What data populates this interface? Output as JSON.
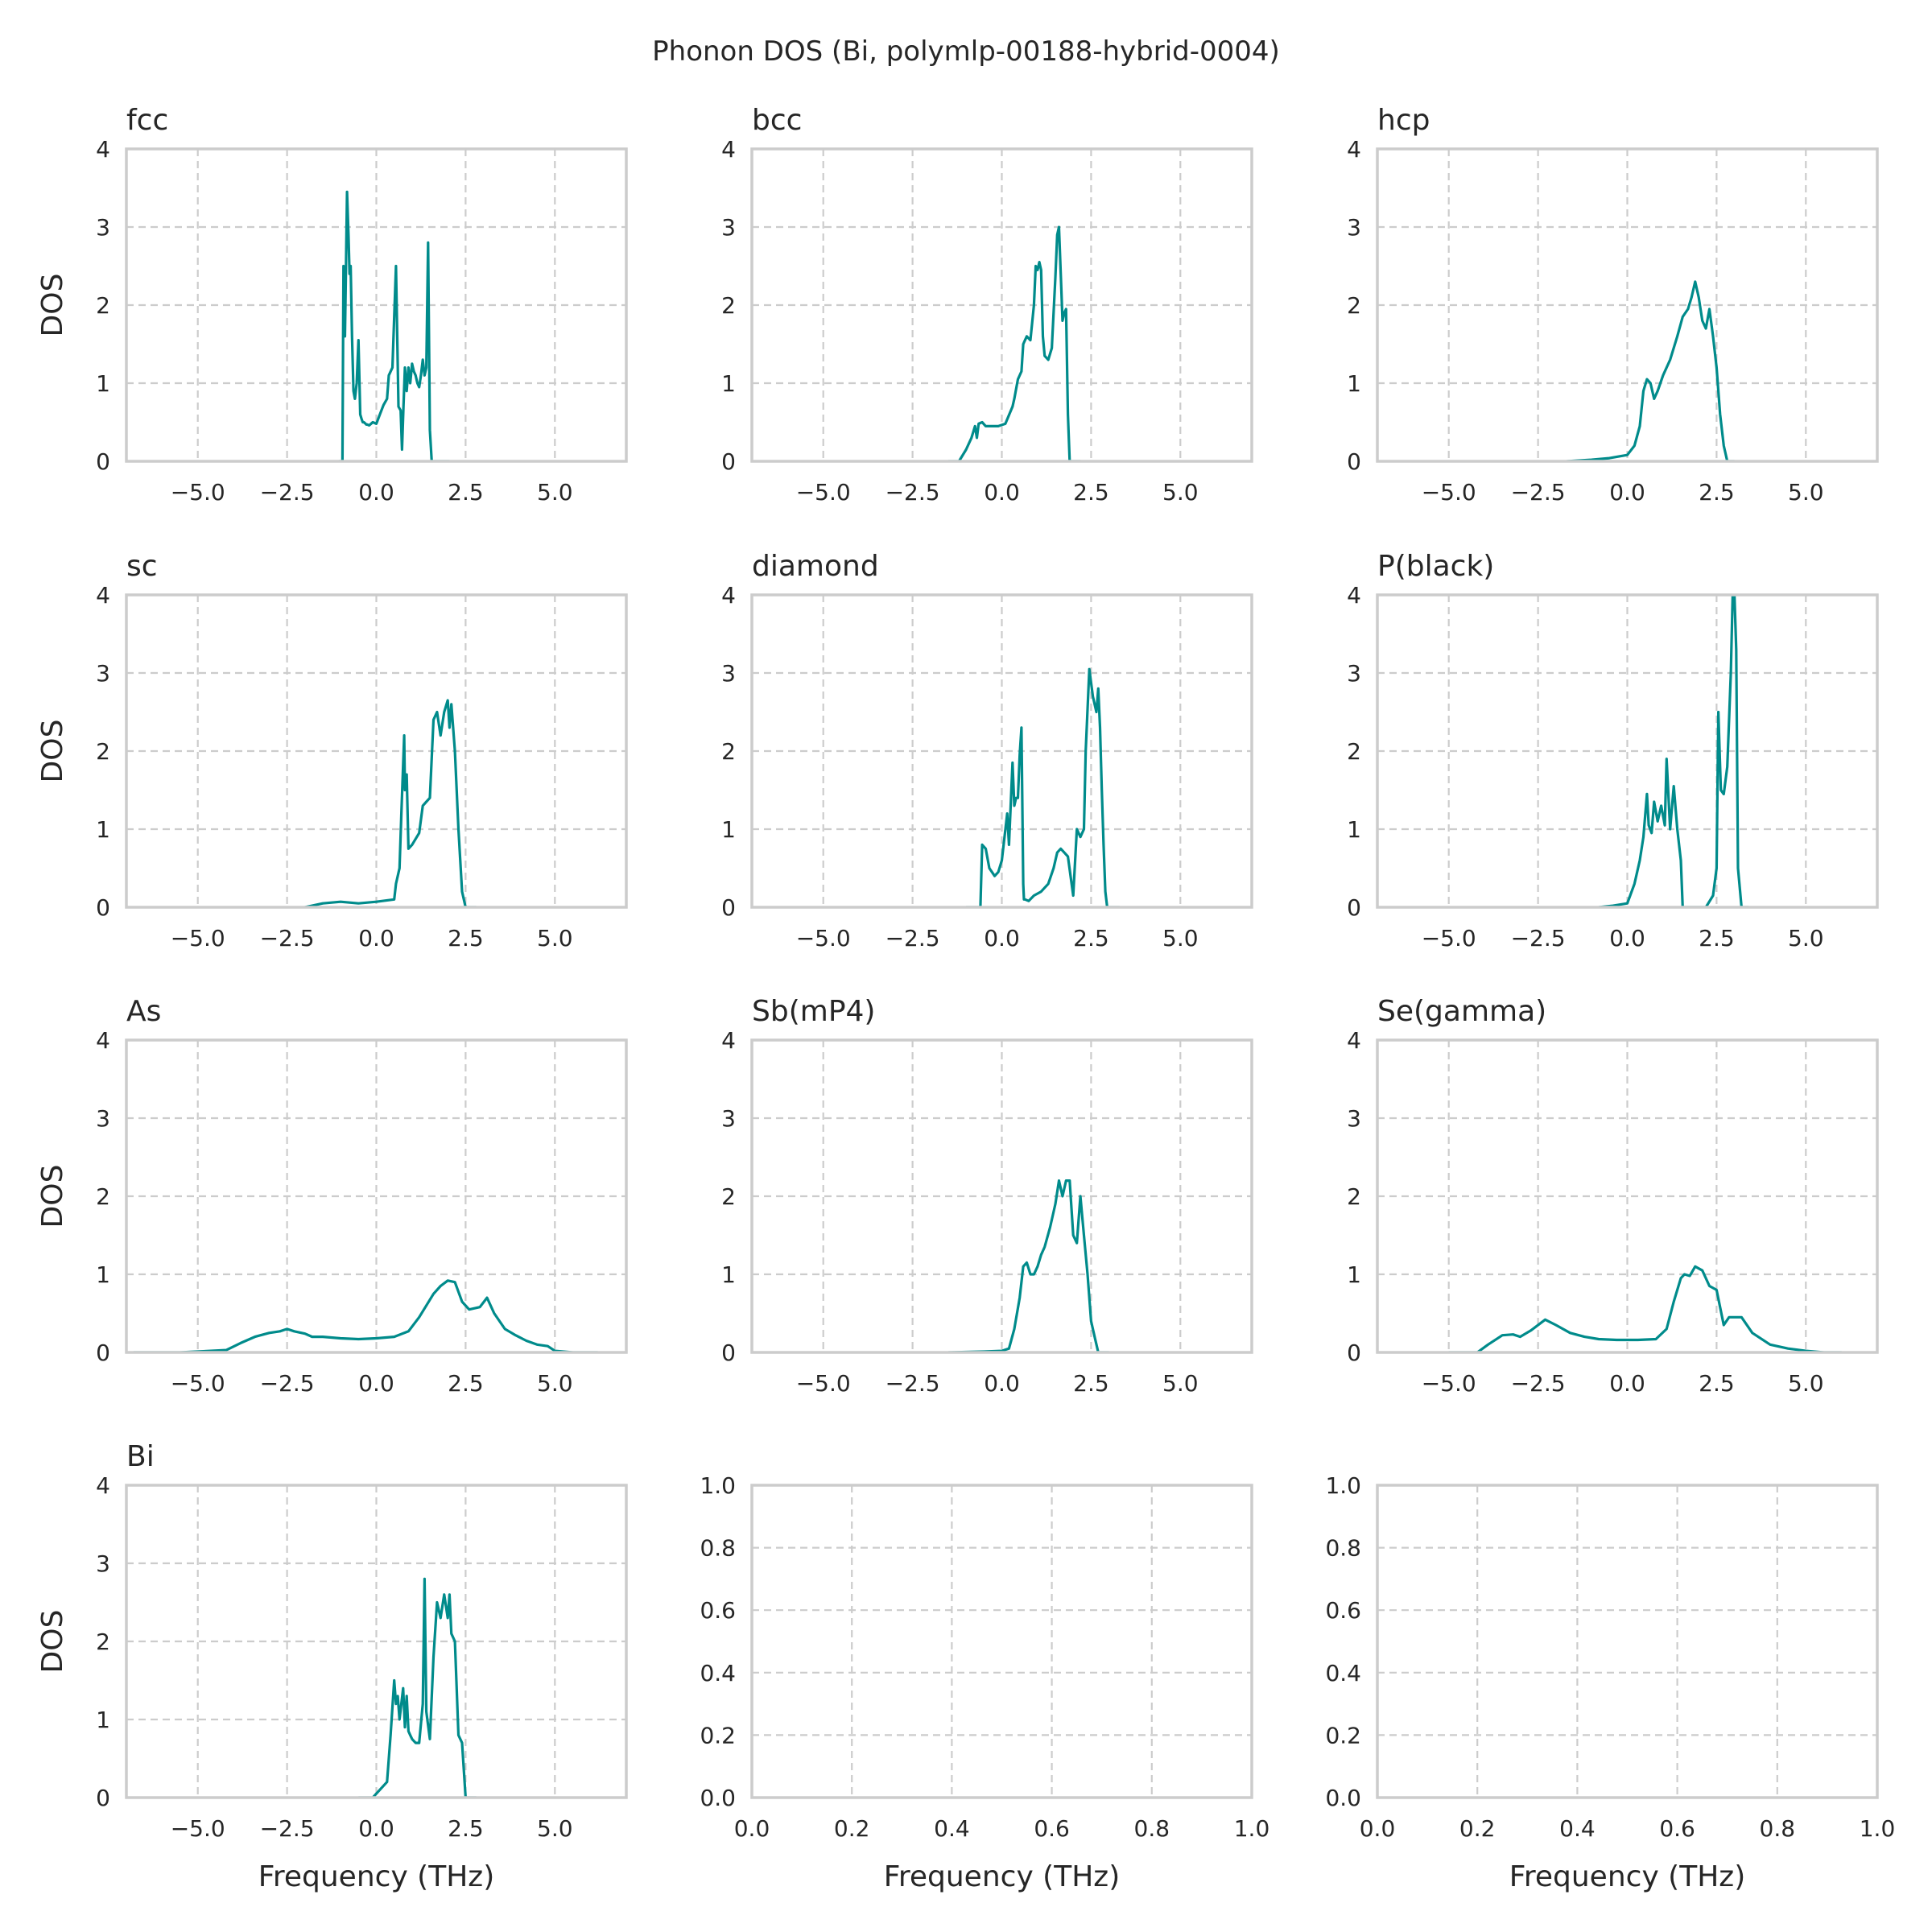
{
  "figure": {
    "title": "Phonon DOS (Bi, polymlp-00188-hybrid-0004)",
    "line_color": "#008b8b"
  },
  "chart_data": [
    {
      "type": "line",
      "title": "fcc",
      "xlabel": "",
      "ylabel": "DOS",
      "xlim": [
        -7,
        7
      ],
      "ylim": [
        0,
        4
      ],
      "xticks": [
        -5.0,
        -2.5,
        0.0,
        2.5,
        5.0
      ],
      "xtick_labels": [
        "−5.0",
        "−2.5",
        "0.0",
        "2.5",
        "5.0"
      ],
      "yticks": [
        0,
        1,
        2,
        3,
        4
      ],
      "ytick_labels": [
        "0",
        "1",
        "2",
        "3",
        "4"
      ],
      "grid": true,
      "x": [
        -1.05,
        -0.95,
        -0.92,
        -0.88,
        -0.85,
        -0.82,
        -0.78,
        -0.75,
        -0.72,
        -0.68,
        -0.64,
        -0.6,
        -0.55,
        -0.5,
        -0.45,
        -0.42,
        -0.38,
        -0.35,
        -0.3,
        -0.28,
        -0.25,
        -0.2,
        -0.1,
        0.0,
        0.1,
        0.2,
        0.3,
        0.35,
        0.45,
        0.55,
        0.62,
        0.68,
        0.72,
        0.76,
        0.8,
        0.85,
        0.9,
        0.95,
        1.0,
        1.05,
        1.1,
        1.15,
        1.2,
        1.25,
        1.3,
        1.35,
        1.4,
        1.45,
        1.5,
        1.55,
        1.6,
        1.65,
        1.7,
        1.75,
        1.8,
        1.85,
        1.95,
        2.05
      ],
      "y": [
        0,
        0,
        2.5,
        1.6,
        2.5,
        3.45,
        2.9,
        2.4,
        2.5,
        1.6,
        0.9,
        0.8,
        1.0,
        1.55,
        0.6,
        0.55,
        0.5,
        0.5,
        0.48,
        0.47,
        0.47,
        0.46,
        0.5,
        0.48,
        0.6,
        0.72,
        0.8,
        1.1,
        1.2,
        2.5,
        0.7,
        0.65,
        0.15,
        0.7,
        1.2,
        0.9,
        1.2,
        1.0,
        1.25,
        1.15,
        1.1,
        1.0,
        0.95,
        1.1,
        1.3,
        1.1,
        1.2,
        2.8,
        0.4,
        0,
        0,
        0,
        0,
        0,
        0,
        0,
        0,
        0
      ]
    },
    {
      "type": "line",
      "title": "bcc",
      "xlabel": "",
      "ylabel": "",
      "xlim": [
        -7,
        7
      ],
      "ylim": [
        0,
        4
      ],
      "xticks": [
        -5.0,
        -2.5,
        0.0,
        2.5,
        5.0
      ],
      "xtick_labels": [
        "−5.0",
        "−2.5",
        "0.0",
        "2.5",
        "5.0"
      ],
      "yticks": [
        0,
        1,
        2,
        3,
        4
      ],
      "ytick_labels": [
        "0",
        "1",
        "2",
        "3",
        "4"
      ],
      "grid": true,
      "x": [
        -1.5,
        -1.2,
        -1.0,
        -0.85,
        -0.75,
        -0.7,
        -0.65,
        -0.55,
        -0.45,
        -0.3,
        -0.1,
        0.1,
        0.3,
        0.35,
        0.45,
        0.55,
        0.6,
        0.7,
        0.8,
        0.9,
        0.95,
        1.0,
        1.05,
        1.1,
        1.15,
        1.2,
        1.3,
        1.4,
        1.5,
        1.55,
        1.6,
        1.65,
        1.7,
        1.75,
        1.8,
        1.85,
        1.9,
        1.95,
        2.0,
        2.05,
        2.2
      ],
      "y": [
        0,
        0,
        0.15,
        0.3,
        0.45,
        0.3,
        0.48,
        0.5,
        0.45,
        0.45,
        0.45,
        0.48,
        0.7,
        0.8,
        1.05,
        1.15,
        1.5,
        1.6,
        1.55,
        2.0,
        2.5,
        2.45,
        2.55,
        2.45,
        1.6,
        1.35,
        1.3,
        1.45,
        2.35,
        2.9,
        3.0,
        2.4,
        1.8,
        1.9,
        1.95,
        0.6,
        0,
        0,
        0,
        0,
        0
      ]
    },
    {
      "type": "line",
      "title": "hcp",
      "xlabel": "",
      "ylabel": "",
      "xlim": [
        -7,
        7
      ],
      "ylim": [
        0,
        4
      ],
      "xticks": [
        -5.0,
        -2.5,
        0.0,
        2.5,
        5.0
      ],
      "xtick_labels": [
        "−5.0",
        "−2.5",
        "0.0",
        "2.5",
        "5.0"
      ],
      "yticks": [
        0,
        1,
        2,
        3,
        4
      ],
      "ytick_labels": [
        "0",
        "1",
        "2",
        "3",
        "4"
      ],
      "grid": true,
      "x": [
        -1.7,
        -1.0,
        -0.5,
        0.0,
        0.2,
        0.35,
        0.45,
        0.55,
        0.65,
        0.75,
        0.85,
        1.0,
        1.2,
        1.4,
        1.55,
        1.7,
        1.8,
        1.9,
        2.0,
        2.1,
        2.2,
        2.3,
        2.4,
        2.5,
        2.6,
        2.7,
        2.8,
        2.9,
        3.0
      ],
      "y": [
        0,
        0.02,
        0.04,
        0.08,
        0.2,
        0.45,
        0.9,
        1.05,
        1.0,
        0.8,
        0.9,
        1.1,
        1.3,
        1.6,
        1.85,
        1.95,
        2.1,
        2.3,
        2.1,
        1.8,
        1.7,
        1.95,
        1.6,
        1.2,
        0.6,
        0.2,
        0,
        0,
        0
      ]
    },
    {
      "type": "line",
      "title": "sc",
      "xlabel": "",
      "ylabel": "DOS",
      "xlim": [
        -7,
        7
      ],
      "ylim": [
        0,
        4
      ],
      "xticks": [
        -5.0,
        -2.5,
        0.0,
        2.5,
        5.0
      ],
      "xtick_labels": [
        "−5.0",
        "−2.5",
        "0.0",
        "2.5",
        "5.0"
      ],
      "yticks": [
        0,
        1,
        2,
        3,
        4
      ],
      "ytick_labels": [
        "0",
        "1",
        "2",
        "3",
        "4"
      ],
      "grid": true,
      "x": [
        -2.0,
        -1.5,
        -1.0,
        -0.5,
        0.0,
        0.5,
        0.55,
        0.65,
        0.7,
        0.78,
        0.8,
        0.85,
        0.9,
        1.0,
        1.2,
        1.3,
        1.4,
        1.5,
        1.6,
        1.7,
        1.8,
        1.9,
        2.0,
        2.05,
        2.1,
        2.2,
        2.3,
        2.4,
        2.5,
        2.6,
        2.8
      ],
      "y": [
        0,
        0.05,
        0.07,
        0.05,
        0.07,
        0.1,
        0.3,
        0.5,
        1.2,
        2.2,
        1.5,
        1.7,
        0.75,
        0.8,
        0.95,
        1.3,
        1.35,
        1.4,
        2.4,
        2.5,
        2.2,
        2.5,
        2.65,
        2.3,
        2.6,
        2.0,
        1.0,
        0.2,
        0,
        0,
        0
      ]
    },
    {
      "type": "line",
      "title": "diamond",
      "xlabel": "",
      "ylabel": "",
      "xlim": [
        -7,
        7
      ],
      "ylim": [
        0,
        4
      ],
      "xticks": [
        -5.0,
        -2.5,
        0.0,
        2.5,
        5.0
      ],
      "xtick_labels": [
        "−5.0",
        "−2.5",
        "0.0",
        "2.5",
        "5.0"
      ],
      "yticks": [
        0,
        1,
        2,
        3,
        4
      ],
      "ytick_labels": [
        "0",
        "1",
        "2",
        "3",
        "4"
      ],
      "grid": true,
      "x": [
        -1.0,
        -0.6,
        -0.55,
        -0.45,
        -0.35,
        -0.2,
        -0.1,
        0.0,
        0.15,
        0.2,
        0.3,
        0.35,
        0.4,
        0.45,
        0.5,
        0.55,
        0.6,
        0.62,
        0.65,
        0.75,
        0.9,
        1.1,
        1.3,
        1.45,
        1.55,
        1.65,
        1.75,
        1.85,
        2.0,
        2.1,
        2.2,
        2.3,
        2.35,
        2.45,
        2.55,
        2.65,
        2.7,
        2.75,
        2.8,
        2.85,
        2.9,
        2.95,
        3.0,
        3.1,
        3.3
      ],
      "y": [
        0,
        0,
        0.8,
        0.75,
        0.5,
        0.4,
        0.45,
        0.6,
        1.2,
        0.8,
        1.85,
        1.3,
        1.4,
        1.4,
        1.95,
        2.3,
        0.3,
        0.1,
        0.1,
        0.08,
        0.15,
        0.2,
        0.3,
        0.5,
        0.7,
        0.75,
        0.7,
        0.65,
        0.15,
        1.0,
        0.9,
        1.0,
        2.0,
        3.05,
        2.7,
        2.5,
        2.8,
        2.3,
        1.5,
        0.8,
        0.2,
        0,
        0,
        0,
        0
      ]
    },
    {
      "type": "line",
      "title": "P(black)",
      "xlabel": "",
      "ylabel": "",
      "xlim": [
        -7,
        7
      ],
      "ylim": [
        0,
        4
      ],
      "xticks": [
        -5.0,
        -2.5,
        0.0,
        2.5,
        5.0
      ],
      "xtick_labels": [
        "−5.0",
        "−2.5",
        "0.0",
        "2.5",
        "5.0"
      ],
      "yticks": [
        0,
        1,
        2,
        3,
        4
      ],
      "ytick_labels": [
        "0",
        "1",
        "2",
        "3",
        "4"
      ],
      "grid": true,
      "x": [
        -0.8,
        -0.4,
        0.0,
        0.2,
        0.35,
        0.45,
        0.55,
        0.6,
        0.68,
        0.75,
        0.85,
        0.95,
        1.05,
        1.1,
        1.2,
        1.3,
        1.4,
        1.5,
        1.55,
        1.65,
        1.72,
        1.8,
        2.0,
        2.2,
        2.4,
        2.5,
        2.55,
        2.62,
        2.7,
        2.8,
        2.9,
        2.95,
        3.0,
        3.05,
        3.1,
        3.2,
        3.4
      ],
      "y": [
        0,
        0.02,
        0.05,
        0.3,
        0.6,
        0.9,
        1.45,
        1.05,
        0.95,
        1.35,
        1.1,
        1.3,
        1.05,
        1.9,
        1.0,
        1.55,
        1.0,
        0.6,
        0.0,
        0,
        0,
        0,
        0,
        0,
        0.15,
        0.5,
        2.5,
        1.5,
        1.45,
        1.8,
        3.0,
        4.0,
        4.0,
        3.3,
        0.5,
        0,
        0
      ]
    },
    {
      "type": "line",
      "title": "As",
      "xlabel": "",
      "ylabel": "DOS",
      "xlim": [
        -7,
        7
      ],
      "ylim": [
        0,
        4
      ],
      "xticks": [
        -5.0,
        -2.5,
        0.0,
        2.5,
        5.0
      ],
      "xtick_labels": [
        "−5.0",
        "−2.5",
        "0.0",
        "2.5",
        "5.0"
      ],
      "yticks": [
        0,
        1,
        2,
        3,
        4
      ],
      "ytick_labels": [
        "0",
        "1",
        "2",
        "3",
        "4"
      ],
      "grid": true,
      "x": [
        -6.8,
        -5.5,
        -4.2,
        -3.8,
        -3.4,
        -3.0,
        -2.7,
        -2.5,
        -2.3,
        -2.0,
        -1.8,
        -1.5,
        -1.0,
        -0.5,
        0.0,
        0.5,
        0.9,
        1.2,
        1.4,
        1.6,
        1.8,
        2.0,
        2.2,
        2.4,
        2.6,
        2.9,
        3.1,
        3.3,
        3.6,
        3.9,
        4.2,
        4.5,
        4.8,
        5.0,
        5.5,
        6.2
      ],
      "y": [
        0,
        0,
        0.03,
        0.12,
        0.2,
        0.25,
        0.27,
        0.3,
        0.27,
        0.24,
        0.2,
        0.2,
        0.18,
        0.17,
        0.18,
        0.2,
        0.27,
        0.45,
        0.6,
        0.75,
        0.85,
        0.92,
        0.9,
        0.65,
        0.55,
        0.58,
        0.7,
        0.5,
        0.3,
        0.22,
        0.15,
        0.1,
        0.08,
        0.02,
        0,
        0
      ]
    },
    {
      "type": "line",
      "title": "Sb(mP4)",
      "xlabel": "",
      "ylabel": "",
      "xlim": [
        -7,
        7
      ],
      "ylim": [
        0,
        4
      ],
      "xticks": [
        -5.0,
        -2.5,
        0.0,
        2.5,
        5.0
      ],
      "xtick_labels": [
        "−5.0",
        "−2.5",
        "0.0",
        "2.5",
        "5.0"
      ],
      "yticks": [
        0,
        1,
        2,
        3,
        4
      ],
      "ytick_labels": [
        "0",
        "1",
        "2",
        "3",
        "4"
      ],
      "grid": true,
      "x": [
        -1.5,
        -0.5,
        0.0,
        0.2,
        0.35,
        0.5,
        0.6,
        0.7,
        0.8,
        0.9,
        1.0,
        1.1,
        1.2,
        1.35,
        1.5,
        1.6,
        1.7,
        1.8,
        1.9,
        2.0,
        2.1,
        2.2,
        2.3,
        2.4,
        2.5,
        2.6,
        2.7,
        2.8,
        3.0
      ],
      "y": [
        0,
        0.01,
        0.02,
        0.05,
        0.3,
        0.7,
        1.1,
        1.15,
        1.0,
        1.0,
        1.1,
        1.25,
        1.35,
        1.6,
        1.9,
        2.2,
        2.0,
        2.2,
        2.2,
        1.5,
        1.4,
        2.0,
        1.5,
        1.0,
        0.4,
        0.2,
        0,
        0,
        0
      ]
    },
    {
      "type": "line",
      "title": "Se(gamma)",
      "xlabel": "",
      "ylabel": "",
      "xlim": [
        -7,
        7
      ],
      "ylim": [
        0,
        4
      ],
      "xticks": [
        -5.0,
        -2.5,
        0.0,
        2.5,
        5.0
      ],
      "xtick_labels": [
        "−5.0",
        "−2.5",
        "0.0",
        "2.5",
        "5.0"
      ],
      "yticks": [
        0,
        1,
        2,
        3,
        4
      ],
      "ytick_labels": [
        "0",
        "1",
        "2",
        "3",
        "4"
      ],
      "grid": true,
      "x": [
        -5.0,
        -4.2,
        -3.9,
        -3.5,
        -3.2,
        -3.0,
        -2.7,
        -2.3,
        -2.0,
        -1.6,
        -1.2,
        -0.8,
        -0.3,
        0.3,
        0.8,
        1.1,
        1.3,
        1.5,
        1.6,
        1.75,
        1.9,
        2.1,
        2.3,
        2.5,
        2.7,
        2.85,
        3.2,
        3.5,
        4.0,
        4.5,
        5.0,
        5.5,
        6.0
      ],
      "y": [
        0,
        0,
        0.1,
        0.22,
        0.23,
        0.2,
        0.28,
        0.42,
        0.35,
        0.25,
        0.2,
        0.17,
        0.16,
        0.16,
        0.17,
        0.3,
        0.65,
        0.95,
        1.0,
        0.98,
        1.1,
        1.05,
        0.85,
        0.8,
        0.35,
        0.45,
        0.45,
        0.25,
        0.1,
        0.05,
        0.02,
        0,
        0
      ]
    },
    {
      "type": "line",
      "title": "Bi",
      "xlabel": "Frequency (THz)",
      "ylabel": "DOS",
      "xlim": [
        -7,
        7
      ],
      "ylim": [
        0,
        4
      ],
      "xticks": [
        -5.0,
        -2.5,
        0.0,
        2.5,
        5.0
      ],
      "xtick_labels": [
        "−5.0",
        "−2.5",
        "0.0",
        "2.5",
        "5.0"
      ],
      "yticks": [
        0,
        1,
        2,
        3,
        4
      ],
      "ytick_labels": [
        "0",
        "1",
        "2",
        "3",
        "4"
      ],
      "grid": true,
      "x": [
        -0.5,
        -0.1,
        0.1,
        0.3,
        0.4,
        0.5,
        0.55,
        0.6,
        0.65,
        0.75,
        0.8,
        0.85,
        0.9,
        0.95,
        1.0,
        1.1,
        1.2,
        1.3,
        1.35,
        1.4,
        1.5,
        1.6,
        1.7,
        1.8,
        1.9,
        2.0,
        2.05,
        2.1,
        2.2,
        2.3,
        2.4,
        2.5,
        2.6,
        2.8
      ],
      "y": [
        0,
        0,
        0.1,
        0.2,
        0.8,
        1.5,
        1.2,
        1.3,
        1.0,
        1.4,
        0.9,
        1.3,
        0.85,
        0.8,
        0.75,
        0.7,
        0.7,
        1.2,
        2.8,
        1.1,
        0.75,
        1.8,
        2.5,
        2.3,
        2.6,
        2.3,
        2.6,
        2.1,
        2.0,
        0.8,
        0.7,
        0,
        0,
        0
      ]
    },
    {
      "type": "line",
      "title": "",
      "xlabel": "Frequency (THz)",
      "ylabel": "",
      "xlim": [
        0,
        1
      ],
      "ylim": [
        0,
        1
      ],
      "xticks": [
        0.0,
        0.2,
        0.4,
        0.6,
        0.8,
        1.0
      ],
      "xtick_labels": [
        "0.0",
        "0.2",
        "0.4",
        "0.6",
        "0.8",
        "1.0"
      ],
      "yticks": [
        0.0,
        0.2,
        0.4,
        0.6,
        0.8,
        1.0
      ],
      "ytick_labels": [
        "0.0",
        "0.2",
        "0.4",
        "0.6",
        "0.8",
        "1.0"
      ],
      "grid": true,
      "x": [],
      "y": []
    },
    {
      "type": "line",
      "title": "",
      "xlabel": "Frequency (THz)",
      "ylabel": "",
      "xlim": [
        0,
        1
      ],
      "ylim": [
        0,
        1
      ],
      "xticks": [
        0.0,
        0.2,
        0.4,
        0.6,
        0.8,
        1.0
      ],
      "xtick_labels": [
        "0.0",
        "0.2",
        "0.4",
        "0.6",
        "0.8",
        "1.0"
      ],
      "yticks": [
        0.0,
        0.2,
        0.4,
        0.6,
        0.8,
        1.0
      ],
      "ytick_labels": [
        "0.0",
        "0.2",
        "0.4",
        "0.6",
        "0.8",
        "1.0"
      ],
      "grid": true,
      "x": [],
      "y": []
    }
  ]
}
